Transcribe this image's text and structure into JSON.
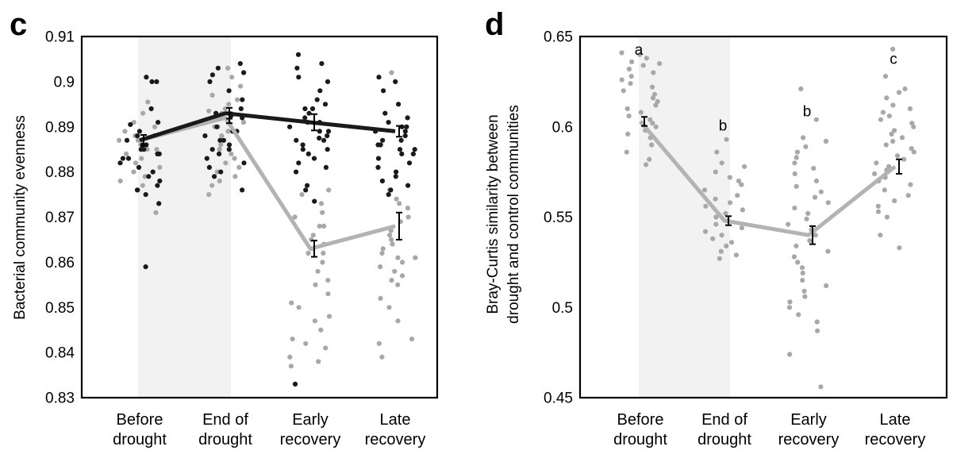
{
  "chart_data": [
    {
      "panel": "c",
      "type": "scatter",
      "ylabel": "Bacterial community evenness",
      "ylim": [
        0.83,
        0.91
      ],
      "yticks": [
        "0.83",
        "0.84",
        "0.85",
        "0.86",
        "0.87",
        "0.88",
        "0.89",
        "0.9",
        "0.91"
      ],
      "categories": [
        {
          "line1": "Before",
          "line2": "drought"
        },
        {
          "line1": "End of",
          "line2": "drought"
        },
        {
          "line1": "Early",
          "line2": "recovery"
        },
        {
          "line1": "Late",
          "line2": "recovery"
        }
      ],
      "shaded_categories": [
        0,
        1
      ],
      "series": [
        {
          "color": "#1a1a1a",
          "means": [
            0.887,
            0.893,
            0.891,
            0.889
          ],
          "errors": [
            0.0012,
            0.0012,
            0.0018,
            0.0012
          ],
          "points": [
            [
              0.901,
              0.894,
              0.891,
              0.8905,
              0.889,
              0.888,
              0.887,
              0.886,
              0.886,
              0.885,
              0.885,
              0.884,
              0.883,
              0.882,
              0.881,
              0.88,
              0.879,
              0.878,
              0.877,
              0.876,
              0.875,
              0.873,
              0.859,
              0.9,
              0.9,
              0.884,
              0.888,
              0.883
            ],
            [
              0.904,
              0.903,
              0.902,
              0.9015,
              0.9,
              0.898,
              0.896,
              0.894,
              0.893,
              0.892,
              0.891,
              0.89,
              0.889,
              0.888,
              0.887,
              0.887,
              0.886,
              0.885,
              0.885,
              0.884,
              0.883,
              0.882,
              0.881,
              0.88,
              0.879,
              0.876,
              0.889,
              0.8925
            ],
            [
              0.906,
              0.904,
              0.903,
              0.901,
              0.9,
              0.898,
              0.896,
              0.895,
              0.894,
              0.894,
              0.893,
              0.892,
              0.891,
              0.89,
              0.889,
              0.888,
              0.887,
              0.887,
              0.886,
              0.885,
              0.885,
              0.884,
              0.883,
              0.882,
              0.881,
              0.88,
              0.877,
              0.876,
              0.8735,
              0.833,
              0.891,
              0.889,
              0.8875
            ],
            [
              0.901,
              0.9,
              0.898,
              0.895,
              0.893,
              0.892,
              0.891,
              0.89,
              0.89,
              0.889,
              0.888,
              0.887,
              0.887,
              0.886,
              0.885,
              0.885,
              0.884,
              0.883,
              0.882,
              0.881,
              0.88,
              0.879,
              0.878,
              0.877,
              0.876,
              0.875,
              0.889,
              0.884,
              0.886
            ]
          ]
        },
        {
          "color": "#a8a8a8",
          "means": [
            0.887,
            0.892,
            0.863,
            0.868
          ],
          "errors": [
            0.0012,
            0.0012,
            0.0018,
            0.003
          ],
          "points": [
            [
              0.8955,
              0.893,
              0.891,
              0.89,
              0.889,
              0.888,
              0.887,
              0.886,
              0.885,
              0.884,
              0.883,
              0.882,
              0.881,
              0.88,
              0.879,
              0.878,
              0.877,
              0.876,
              0.871,
              0.887,
              0.885
            ],
            [
              0.903,
              0.901,
              0.899,
              0.897,
              0.896,
              0.895,
              0.894,
              0.893,
              0.892,
              0.891,
              0.89,
              0.889,
              0.888,
              0.887,
              0.886,
              0.885,
              0.884,
              0.883,
              0.882,
              0.881,
              0.88,
              0.879,
              0.878,
              0.877,
              0.875,
              0.8935,
              0.89
            ],
            [
              0.876,
              0.875,
              0.873,
              0.871,
              0.87,
              0.868,
              0.866,
              0.865,
              0.864,
              0.863,
              0.862,
              0.86,
              0.858,
              0.856,
              0.855,
              0.853,
              0.851,
              0.85,
              0.848,
              0.847,
              0.845,
              0.843,
              0.842,
              0.841,
              0.839,
              0.838,
              0.837,
              0.868,
              0.862
            ],
            [
              0.902,
              0.876,
              0.874,
              0.872,
              0.87,
              0.869,
              0.867,
              0.865,
              0.864,
              0.863,
              0.862,
              0.861,
              0.86,
              0.859,
              0.858,
              0.857,
              0.856,
              0.855,
              0.852,
              0.85,
              0.847,
              0.843,
              0.842,
              0.839,
              0.866,
              0.861,
              0.873
            ]
          ]
        }
      ]
    },
    {
      "panel": "d",
      "type": "scatter",
      "ylabel_line1": "Bray-Curtis similarity between",
      "ylabel_line2": "drought and control communities",
      "ylim": [
        0.45,
        0.65
      ],
      "yticks": [
        "0.45",
        "0.5",
        "0.55",
        "0.6",
        "0.65"
      ],
      "categories": [
        {
          "line1": "Before",
          "line2": "drought"
        },
        {
          "line1": "End of",
          "line2": "drought"
        },
        {
          "line1": "Early",
          "line2": "recovery"
        },
        {
          "line1": "Late",
          "line2": "recovery"
        }
      ],
      "shaded_categories": [
        0,
        1
      ],
      "significance_letters": [
        {
          "text": "a",
          "y": 0.6425
        },
        {
          "text": "b",
          "y": 0.6005
        },
        {
          "text": "b",
          "y": 0.6085
        },
        {
          "text": "c",
          "y": 0.6375
        }
      ],
      "series": [
        {
          "color": "#a8a8a8",
          "means": [
            0.603,
            0.548,
            0.54,
            0.578
          ],
          "errors": [
            0.0025,
            0.0025,
            0.005,
            0.004
          ],
          "points": [
            [
              0.641,
              0.64,
              0.638,
              0.636,
              0.635,
              0.634,
              0.632,
              0.63,
              0.628,
              0.626,
              0.624,
              0.622,
              0.62,
              0.618,
              0.616,
              0.614,
              0.612,
              0.61,
              0.608,
              0.606,
              0.604,
              0.602,
              0.6,
              0.598,
              0.596,
              0.594,
              0.59,
              0.586,
              0.582,
              0.579
            ],
            [
              0.593,
              0.586,
              0.58,
              0.578,
              0.575,
              0.572,
              0.57,
              0.568,
              0.565,
              0.562,
              0.56,
              0.558,
              0.556,
              0.554,
              0.552,
              0.55,
              0.548,
              0.546,
              0.544,
              0.542,
              0.54,
              0.538,
              0.536,
              0.534,
              0.531,
              0.529,
              0.527
            ],
            [
              0.621,
              0.604,
              0.594,
              0.592,
              0.589,
              0.586,
              0.583,
              0.58,
              0.577,
              0.574,
              0.57,
              0.567,
              0.564,
              0.561,
              0.558,
              0.555,
              0.552,
              0.549,
              0.546,
              0.543,
              0.54,
              0.537,
              0.534,
              0.531,
              0.528,
              0.525,
              0.522,
              0.519,
              0.515,
              0.512,
              0.509,
              0.506,
              0.503,
              0.5,
              0.496,
              0.492,
              0.487,
              0.474,
              0.456
            ],
            [
              0.643,
              0.628,
              0.621,
              0.619,
              0.616,
              0.612,
              0.61,
              0.608,
              0.606,
              0.604,
              0.602,
              0.6,
              0.598,
              0.596,
              0.594,
              0.592,
              0.59,
              0.588,
              0.586,
              0.584,
              0.582,
              0.58,
              0.578,
              0.576,
              0.574,
              0.572,
              0.57,
              0.568,
              0.565,
              0.562,
              0.559,
              0.556,
              0.553,
              0.55,
              0.54,
              0.533
            ]
          ]
        }
      ]
    }
  ]
}
